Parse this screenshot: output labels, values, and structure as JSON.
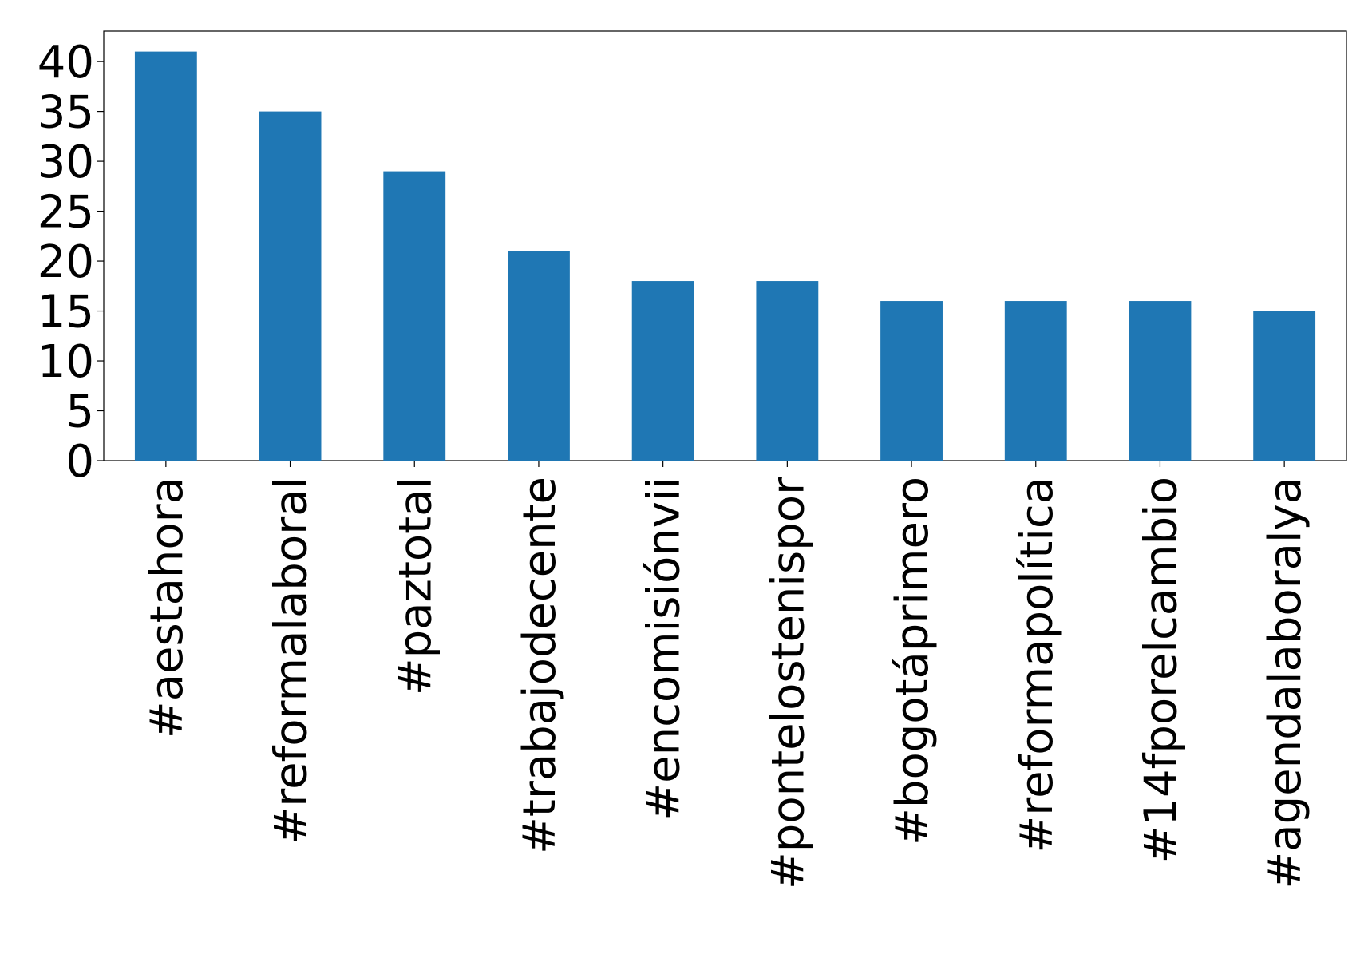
{
  "chart_data": {
    "type": "bar",
    "categories": [
      "#aestahora",
      "#reformalaboral",
      "#paztotal",
      "#trabajodecente",
      "#encomisiónvii",
      "#pontelostenispor",
      "#bogotáprimero",
      "#reformapolítica",
      "#14fporelcambio",
      "#agendalaboralya"
    ],
    "values": [
      41,
      35,
      29,
      21,
      18,
      18,
      16,
      16,
      16,
      15
    ],
    "color": "#1f77b4",
    "ylim": [
      0,
      43.05
    ],
    "yticks": [
      0,
      5,
      10,
      15,
      20,
      25,
      30,
      35,
      40
    ],
    "grid": false
  }
}
